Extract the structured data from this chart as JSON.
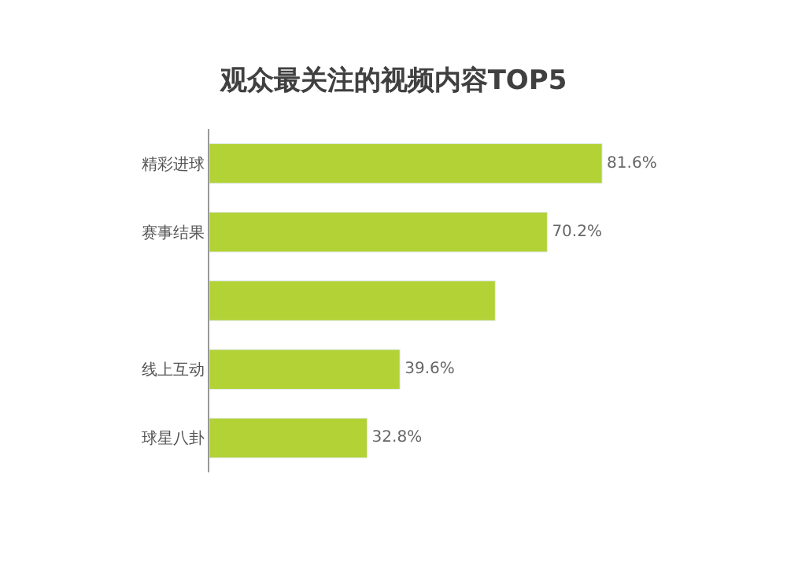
{
  "chart_data": {
    "type": "bar",
    "orientation": "horizontal",
    "title": "观众最关注的视频内容TOP5",
    "categories": [
      "精彩进球",
      "赛事结果",
      null,
      "线上互动",
      "球星八卦"
    ],
    "values": [
      81.6,
      70.2,
      59.4,
      39.6,
      32.8
    ],
    "value_labels": [
      "81.6%",
      "70.2%",
      null,
      "39.6%",
      "32.8%"
    ],
    "color": "#b2d235",
    "legend": false
  }
}
